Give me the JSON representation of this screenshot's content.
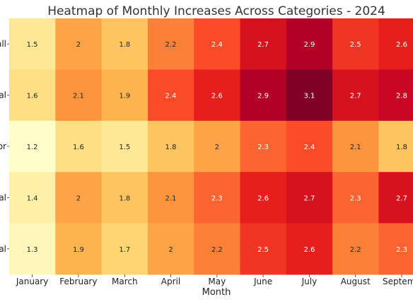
{
  "chart_data": {
    "type": "heatmap",
    "title": "Heatmap of Monthly Increases Across Categories - 2024",
    "xlabel": "Month",
    "ylabel": "",
    "x_tick_labels": [
      "January",
      "February",
      "March",
      "April",
      "May",
      "June",
      "July",
      "August",
      "Septemb"
    ],
    "y_tick_labels": [
      "all",
      "al",
      "or",
      "al",
      "al"
    ],
    "values": [
      [
        1.5,
        2,
        1.8,
        2.2,
        2.4,
        2.7,
        2.9,
        2.5,
        2.6
      ],
      [
        1.6,
        2.1,
        1.9,
        2.4,
        2.6,
        2.9,
        3.1,
        2.7,
        2.8
      ],
      [
        1.2,
        1.6,
        1.5,
        1.8,
        2,
        2.3,
        2.4,
        2.1,
        1.8
      ],
      [
        1.4,
        2,
        1.8,
        2.1,
        2.3,
        2.6,
        2.7,
        2.3,
        2.7
      ],
      [
        1.3,
        1.9,
        1.7,
        2,
        2.2,
        2.5,
        2.6,
        2.2,
        2.3
      ]
    ],
    "value_range": [
      1.2,
      3.1
    ],
    "colormap": "YlOrRd",
    "colors": [
      "#ffffcc",
      "#ffeda0",
      "#fed976",
      "#feb24c",
      "#fd8d3c",
      "#fc4e2a",
      "#e31a1c",
      "#bd0026",
      "#800026"
    ],
    "grid": false,
    "legend": "none"
  }
}
